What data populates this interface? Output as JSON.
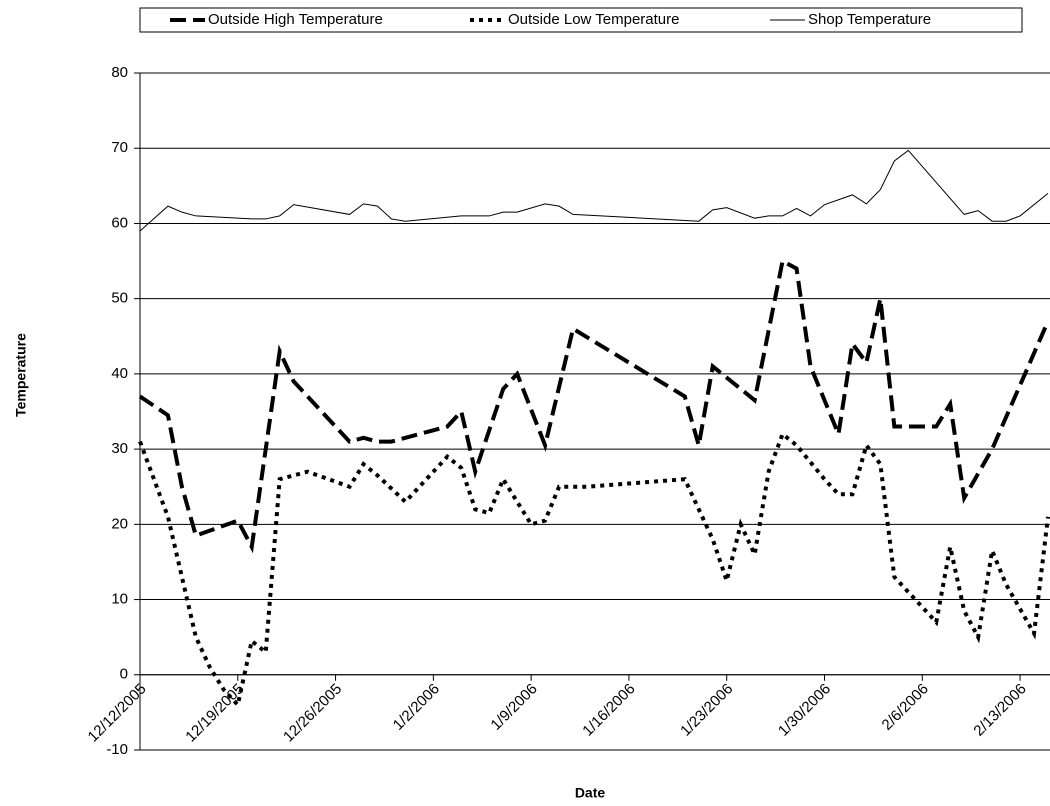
{
  "chart_data": {
    "type": "line",
    "x_label": "Date",
    "y_label": "Temperature",
    "xlim": [
      "12/12/2005",
      "2/15/2006"
    ],
    "xticks": [
      "12/12/2005",
      "12/19/2005",
      "12/26/2005",
      "1/2/2006",
      "1/9/2006",
      "1/16/2006",
      "1/23/2006",
      "1/30/2006",
      "2/6/2006",
      "2/13/2006"
    ],
    "ylim": [
      -10,
      80
    ],
    "yticks": [
      -10,
      0,
      10,
      20,
      30,
      40,
      50,
      60,
      70,
      80
    ],
    "grid": true,
    "legend": "top",
    "series": [
      {
        "name": "Outside High Temperature",
        "color": "#000000",
        "line_style": "dashed",
        "x": [
          "12/12/2005",
          "12/14/2005",
          "12/15/2005",
          "12/16/2005",
          "12/19/2005",
          "12/20/2005",
          "12/22/2005",
          "12/23/2005",
          "12/27/2005",
          "12/28/2005",
          "12/29/2005",
          "12/30/2005",
          "1/2/2006",
          "1/3/2006",
          "1/4/2006",
          "1/5/2006",
          "1/7/2006",
          "1/8/2006",
          "1/10/2006",
          "1/12/2006",
          "1/20/2006",
          "1/21/2006",
          "1/22/2006",
          "1/24/2006",
          "1/25/2006",
          "1/27/2006",
          "1/28/2006",
          "1/29/2006",
          "1/31/2006",
          "2/1/2006",
          "2/2/2006",
          "2/3/2006",
          "2/4/2006",
          "2/7/2006",
          "2/8/2006",
          "2/9/2006",
          "2/11/2006",
          "2/15/2006"
        ],
        "values": [
          37,
          34.5,
          25,
          18.5,
          20.5,
          17,
          43,
          39,
          31,
          31.5,
          31,
          31,
          32.5,
          33,
          35,
          27,
          38,
          40,
          30.5,
          46,
          37,
          30.5,
          41,
          38,
          36.5,
          55,
          54,
          41,
          32,
          44,
          41.5,
          50,
          33,
          33,
          36,
          23.5,
          30,
          47
        ]
      },
      {
        "name": "Outside Low Temperature",
        "color": "#000000",
        "line_style": "dotted",
        "x": [
          "12/12/2005",
          "12/13/2005",
          "12/14/2005",
          "12/15/2005",
          "12/16/2005",
          "12/17/2005",
          "12/18/2005",
          "12/19/2005",
          "12/20/2005",
          "12/21/2005",
          "12/22/2005",
          "12/24/2005",
          "12/27/2005",
          "12/28/2005",
          "12/29/2005",
          "12/31/2005",
          "1/3/2006",
          "1/4/2006",
          "1/5/2006",
          "1/6/2006",
          "1/7/2006",
          "1/9/2006",
          "1/10/2006",
          "1/11/2006",
          "1/13/2006",
          "1/20/2006",
          "1/22/2006",
          "1/23/2006",
          "1/24/2006",
          "1/25/2006",
          "1/26/2006",
          "1/27/2006",
          "1/28/2006",
          "1/30/2006",
          "1/31/2006",
          "2/1/2006",
          "2/2/2006",
          "2/3/2006",
          "2/4/2006",
          "2/5/2006",
          "2/7/2006",
          "2/8/2006",
          "2/9/2006",
          "2/10/2006",
          "2/11/2006",
          "2/12/2006",
          "2/14/2006",
          "2/15/2006"
        ],
        "values": [
          31,
          26,
          21,
          13,
          5,
          1,
          -2,
          -4,
          4.5,
          3,
          26,
          27,
          25,
          28,
          26.5,
          23,
          29,
          27.5,
          22,
          21.5,
          26,
          20,
          20.5,
          25,
          25,
          26,
          18,
          12.5,
          20,
          16,
          27,
          32,
          30.5,
          26,
          24,
          24,
          30.5,
          28,
          13,
          11,
          7,
          17,
          8.5,
          5,
          16.5,
          12,
          5.5,
          21
        ]
      },
      {
        "name": "Shop Temperature",
        "color": "#000000",
        "line_style": "solid",
        "x": [
          "12/12/2005",
          "12/14/2005",
          "12/15/2005",
          "12/16/2005",
          "12/19/2005",
          "12/20/2005",
          "12/21/2005",
          "12/22/2005",
          "12/23/2005",
          "12/27/2005",
          "12/28/2005",
          "12/29/2005",
          "12/30/2005",
          "12/31/2005",
          "1/4/2006",
          "1/6/2006",
          "1/7/2006",
          "1/8/2006",
          "1/10/2006",
          "1/11/2006",
          "1/12/2006",
          "1/21/2006",
          "1/22/2006",
          "1/23/2006",
          "1/25/2006",
          "1/26/2006",
          "1/27/2006",
          "1/28/2006",
          "1/29/2006",
          "1/30/2006",
          "2/1/2006",
          "2/2/2006",
          "2/3/2006",
          "2/4/2006",
          "2/5/2006",
          "2/9/2006",
          "2/10/2006",
          "2/11/2006",
          "2/12/2006",
          "2/13/2006",
          "2/15/2006"
        ],
        "values": [
          59,
          62.3,
          61.5,
          61,
          60.7,
          60.6,
          60.6,
          61,
          62.5,
          61.2,
          62.6,
          62.3,
          60.6,
          60.3,
          61,
          61,
          61.5,
          61.5,
          62.6,
          62.3,
          61.2,
          60.3,
          61.8,
          62.1,
          60.7,
          61,
          61,
          62,
          61,
          62.5,
          63.8,
          62.6,
          64.5,
          68.3,
          69.7,
          61.2,
          61.7,
          60.3,
          60.3,
          61,
          64
        ]
      }
    ]
  }
}
